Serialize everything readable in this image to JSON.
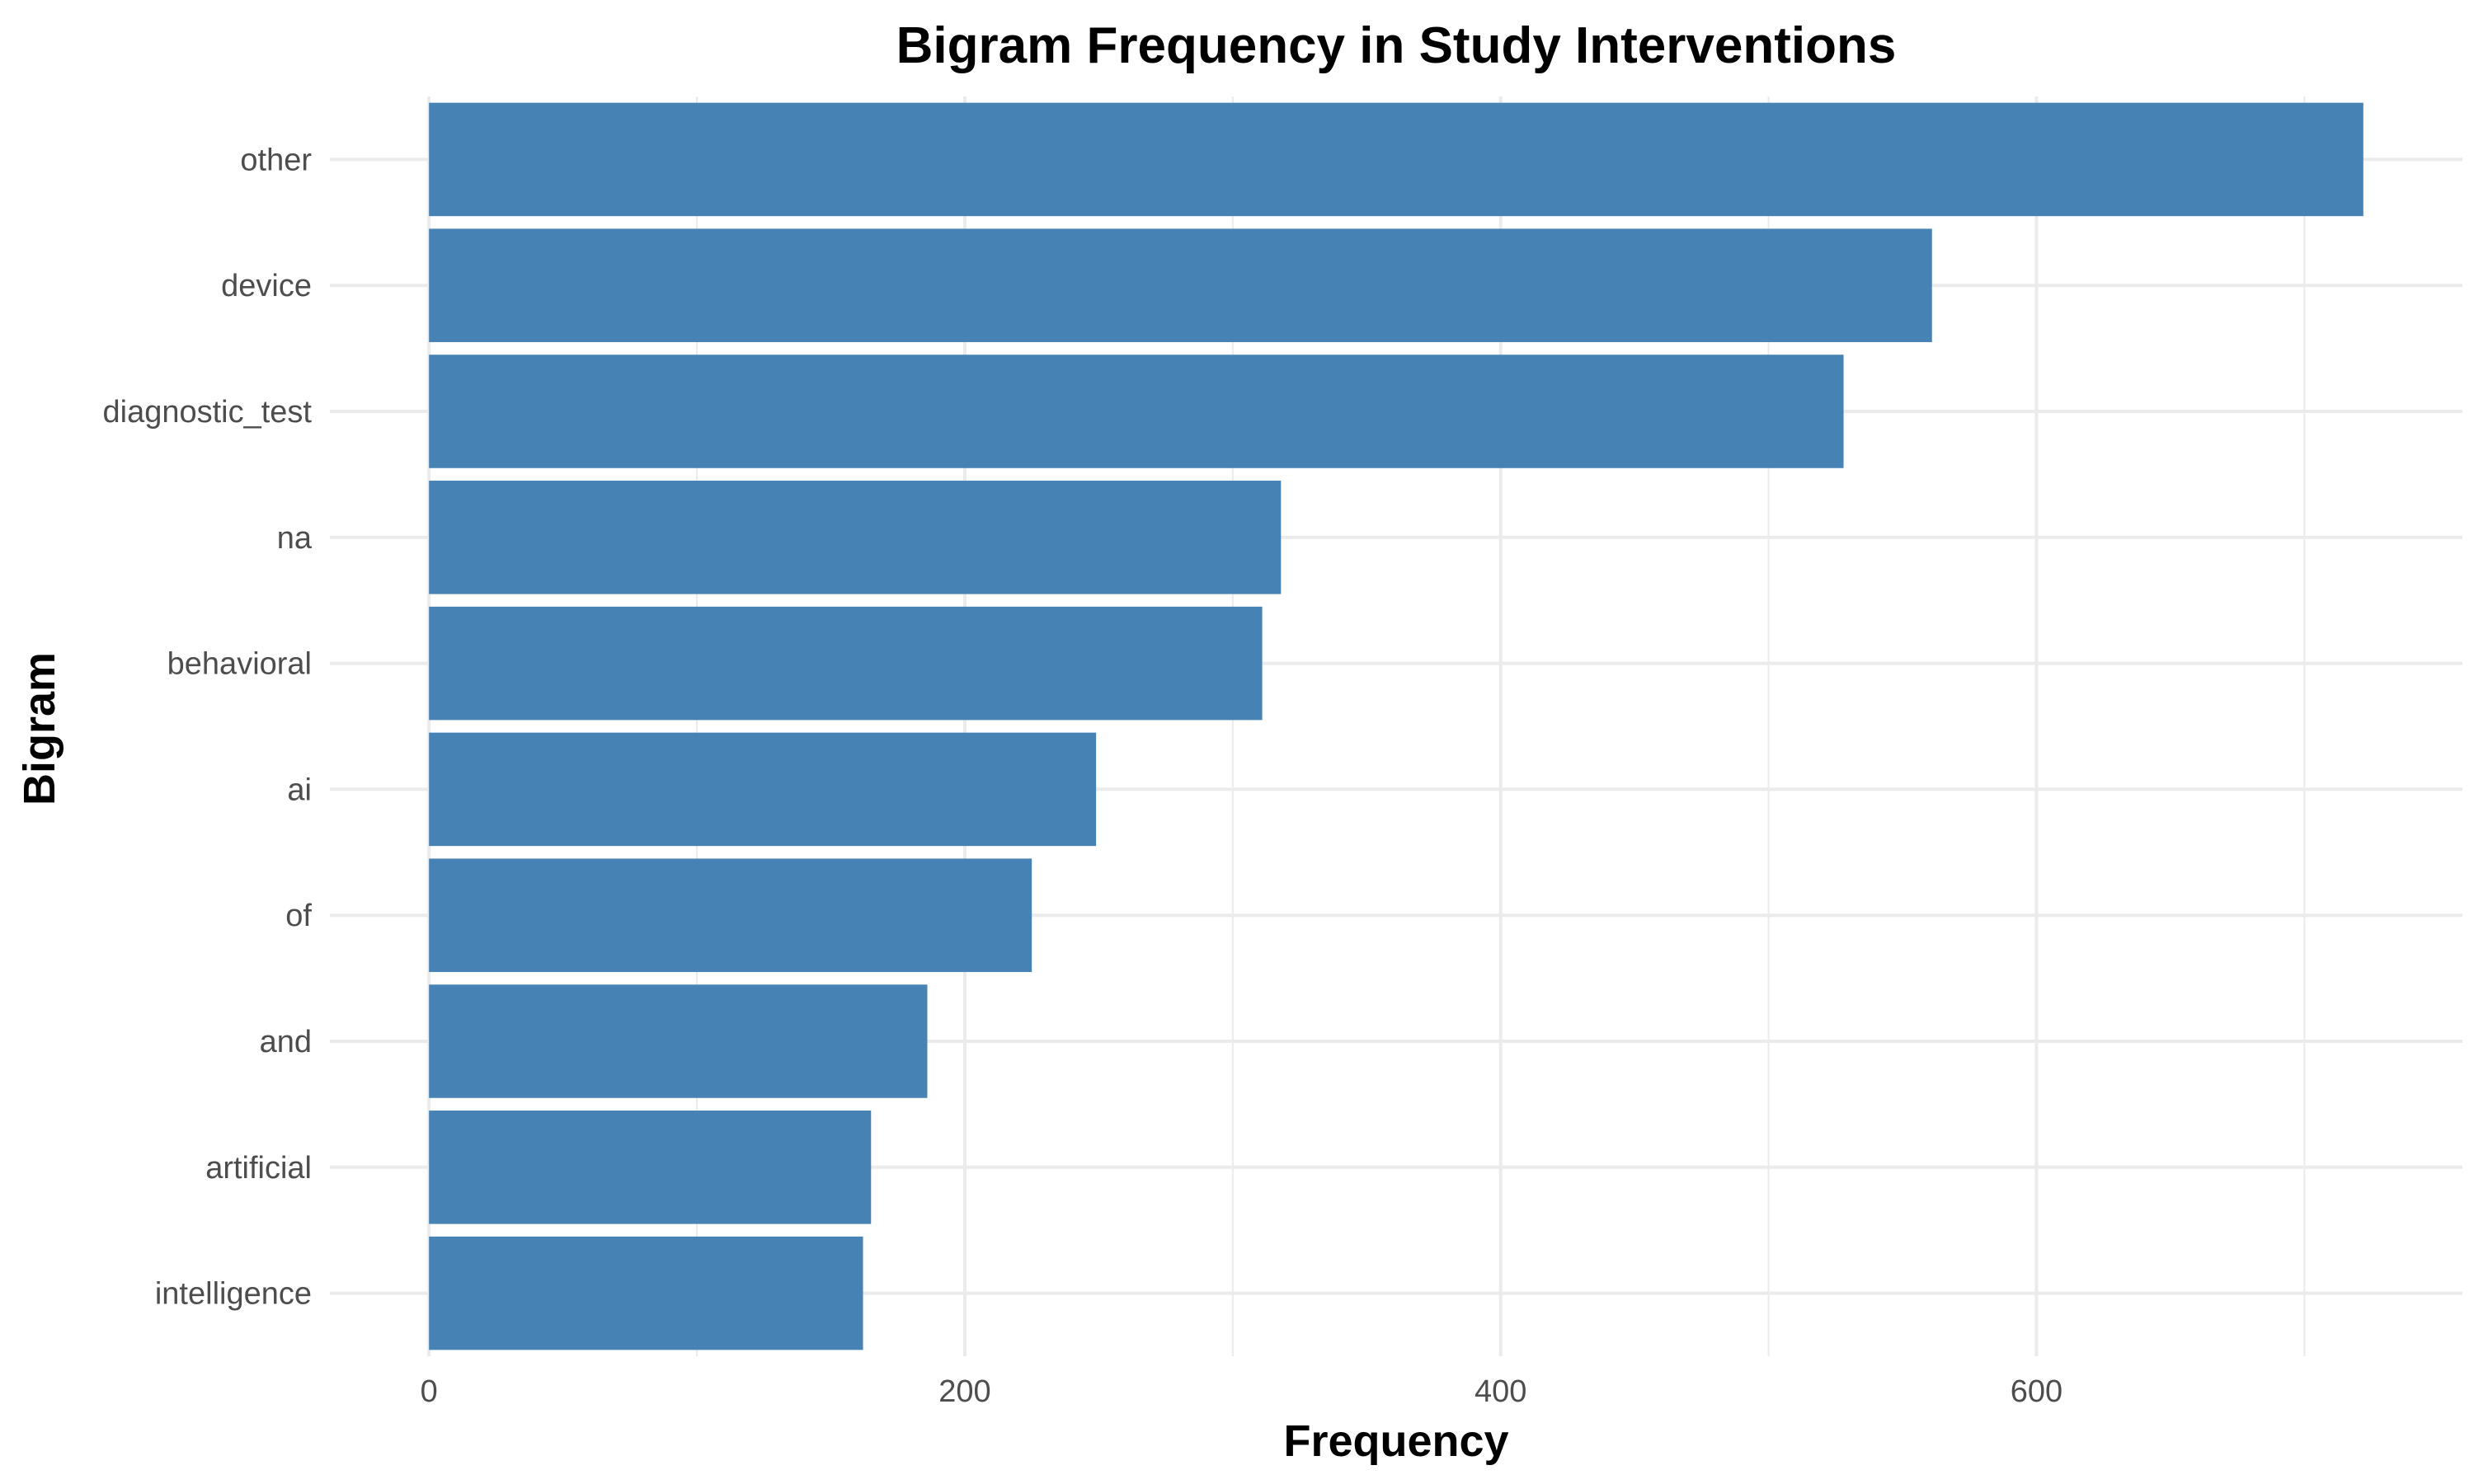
{
  "chart_data": {
    "type": "bar",
    "orientation": "horizontal",
    "title": "Bigram Frequency in Study Interventions",
    "xlabel": "Frequency",
    "ylabel": "Bigram",
    "categories": [
      "other",
      "device",
      "diagnostic_test",
      "na",
      "behavioral",
      "ai",
      "of",
      "and",
      "artificial",
      "intelligence"
    ],
    "values": [
      722,
      561,
      528,
      318,
      311,
      249,
      225,
      186,
      165,
      162
    ],
    "xlim": [
      -37,
      759
    ],
    "xticks": [
      0,
      200,
      400,
      600
    ],
    "bar_color": "#4682b4",
    "grid": true,
    "legend": "none"
  }
}
